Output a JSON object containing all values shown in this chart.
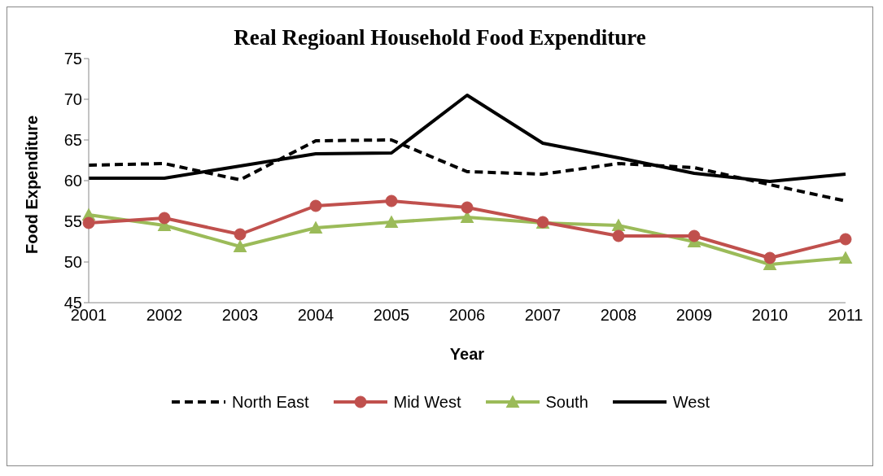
{
  "chart_data": {
    "type": "line",
    "title": "Real Regioanl Household Food Expenditure",
    "xlabel": "Year",
    "ylabel": "Food Expenditure",
    "categories": [
      "2001",
      "2002",
      "2003",
      "2004",
      "2005",
      "2006",
      "2007",
      "2008",
      "2009",
      "2010",
      "2011"
    ],
    "ylim": [
      45,
      75
    ],
    "yticks": [
      45,
      50,
      55,
      60,
      65,
      70,
      75
    ],
    "grid": false,
    "legend": "bottom",
    "series": [
      {
        "name": "North East",
        "color": "#000000",
        "line_style": "dashed",
        "marker": "none",
        "values": [
          61.9,
          62.1,
          60.1,
          64.9,
          65.0,
          61.1,
          60.8,
          62.1,
          61.6,
          59.5,
          57.5
        ]
      },
      {
        "name": "Mid West",
        "color": "#c0504d",
        "line_style": "solid",
        "marker": "circle",
        "values": [
          54.8,
          55.4,
          53.4,
          56.9,
          57.5,
          56.7,
          54.9,
          53.2,
          53.2,
          50.5,
          52.8
        ]
      },
      {
        "name": "South",
        "color": "#9bbb59",
        "line_style": "solid",
        "marker": "triangle",
        "values": [
          55.8,
          54.5,
          51.9,
          54.2,
          54.9,
          55.5,
          54.8,
          54.5,
          52.5,
          49.7,
          50.5
        ]
      },
      {
        "name": "West",
        "color": "#000000",
        "line_style": "solid",
        "marker": "none",
        "values": [
          60.3,
          60.3,
          61.8,
          63.3,
          63.4,
          70.5,
          64.6,
          62.8,
          60.9,
          59.9,
          60.8
        ]
      }
    ]
  }
}
